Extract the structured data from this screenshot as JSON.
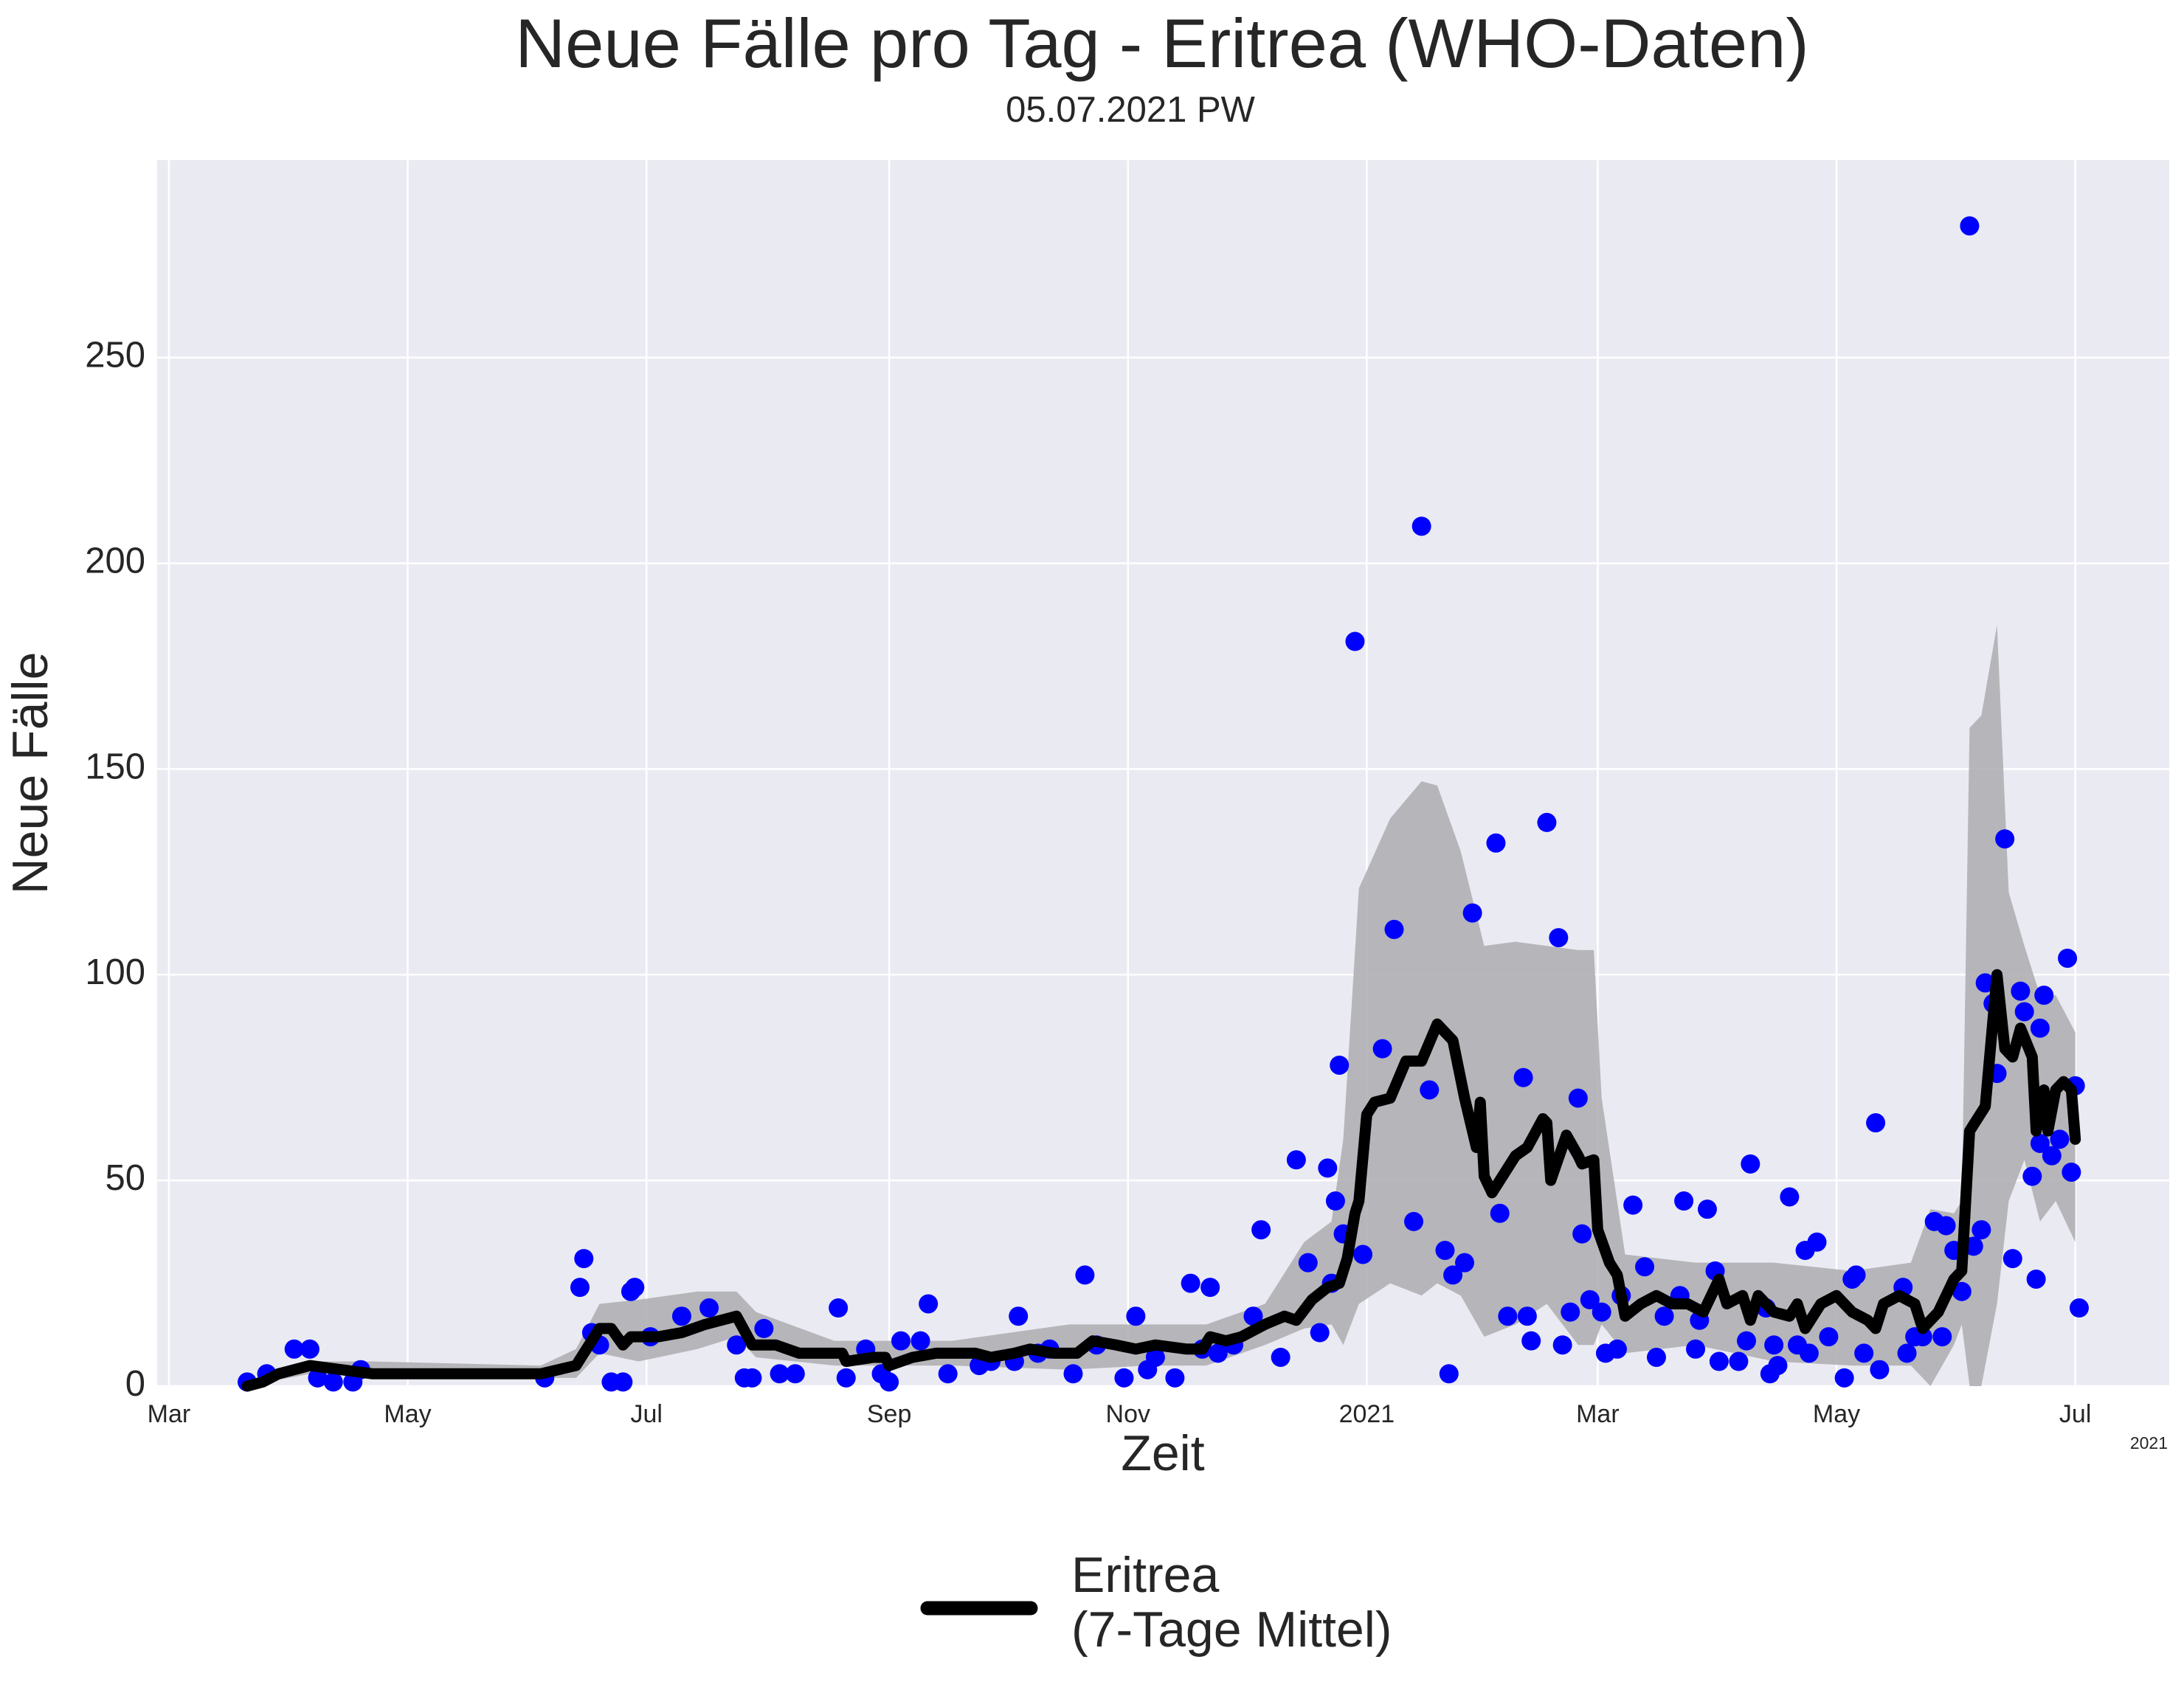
{
  "chart_data": {
    "type": "line",
    "title": "Neue Fälle pro Tag - Eritrea (WHO-Daten)",
    "subtitle": "05.07.2021 PW",
    "x_label": "Zeit",
    "y_label": "Neue Fälle",
    "x_offset_label": "2021",
    "background": "#eaeaf2",
    "grid": true,
    "legend": "lower center",
    "xlim": [
      -3,
      511
    ],
    "xticks": [
      {
        "value": 0,
        "label": "Mar"
      },
      {
        "value": 61,
        "label": "May"
      },
      {
        "value": 122,
        "label": "Jul"
      },
      {
        "value": 184,
        "label": "Sep"
      },
      {
        "value": 245,
        "label": "Nov"
      },
      {
        "value": 306,
        "label": "2021"
      },
      {
        "value": 365,
        "label": "Mar"
      },
      {
        "value": 426,
        "label": "May"
      },
      {
        "value": 487,
        "label": "Jul"
      }
    ],
    "ylim": [
      0,
      298
    ],
    "yticks": [
      0,
      50,
      100,
      150,
      200,
      250
    ],
    "band": {
      "color": "#ababb0",
      "x": [
        20,
        36,
        52,
        95,
        104,
        110,
        120,
        135,
        145,
        150,
        170,
        200,
        230,
        250,
        265,
        280,
        290,
        297,
        300,
        304,
        312,
        320,
        324,
        330,
        336,
        344,
        352,
        360,
        364,
        366,
        372,
        390,
        410,
        430,
        445,
        450,
        456,
        458,
        460,
        463,
        467,
        470,
        474,
        478,
        482,
        487
      ],
      "upper": [
        1,
        6,
        6,
        5,
        9,
        20,
        21,
        23,
        23,
        18,
        11,
        11,
        15,
        15,
        15,
        20,
        35,
        40,
        60,
        121,
        138,
        147,
        146,
        130,
        107,
        108,
        107,
        106,
        106,
        70,
        32,
        30,
        30,
        28,
        30,
        43,
        42,
        45,
        160,
        163,
        185,
        120,
        107,
        95,
        95,
        86
      ],
      "lower": [
        0,
        3,
        3,
        2,
        2,
        8,
        6,
        9,
        12,
        7,
        5,
        5,
        4,
        5,
        5,
        10,
        14,
        15,
        10,
        20,
        25,
        22,
        25,
        22,
        12,
        15,
        20,
        10,
        10,
        15,
        8,
        10,
        6,
        5,
        5,
        0,
        10,
        15,
        0,
        0,
        20,
        45,
        55,
        40,
        45,
        35
      ]
    },
    "scatter": {
      "color": "#0000ff",
      "x": [
        20,
        25,
        32,
        36,
        38,
        42,
        47,
        49,
        96,
        105,
        106,
        108,
        110,
        113,
        116,
        118,
        119,
        123,
        131,
        138,
        145,
        147,
        149,
        152,
        156,
        160,
        171,
        173,
        178,
        182,
        184,
        187,
        192,
        194,
        199,
        207,
        210,
        216,
        217,
        222,
        225,
        231,
        234,
        237,
        244,
        247,
        250,
        252,
        257,
        261,
        264,
        266,
        268,
        272,
        277,
        279,
        284,
        288,
        291,
        294,
        296,
        297,
        298,
        299,
        300,
        303,
        305,
        310,
        313,
        318,
        320,
        322,
        326,
        327,
        328,
        331,
        333,
        339,
        340,
        342,
        346,
        347,
        348,
        352,
        355,
        356,
        358,
        360,
        361,
        363,
        366,
        367,
        370,
        371,
        374,
        377,
        380,
        382,
        386,
        387,
        390,
        391,
        393,
        395,
        396,
        401,
        403,
        404,
        408,
        409,
        410,
        411,
        414,
        416,
        418,
        419,
        421,
        424,
        428,
        430,
        431,
        433,
        436,
        437,
        443,
        444,
        446,
        448,
        451,
        453,
        454,
        456,
        458,
        460,
        461,
        463,
        464,
        466,
        467,
        469,
        471,
        473,
        474,
        476,
        477,
        478,
        478,
        479,
        481,
        483,
        485,
        486,
        487,
        488
      ],
      "values": [
        1,
        3,
        9,
        9,
        2,
        1,
        1,
        4,
        2,
        24,
        31,
        13,
        10,
        1,
        1,
        23,
        24,
        12,
        17,
        19,
        10,
        2,
        2,
        14,
        3,
        3,
        19,
        2,
        9,
        3,
        1,
        11,
        11,
        20,
        3,
        5,
        6,
        6,
        17,
        8,
        9,
        3,
        27,
        10,
        2,
        17,
        4,
        7,
        2,
        25,
        9,
        24,
        8,
        10,
        17,
        38,
        7,
        55,
        30,
        13,
        53,
        25,
        45,
        78,
        37,
        181,
        32,
        82,
        111,
        40,
        209,
        72,
        33,
        3,
        27,
        30,
        115,
        132,
        42,
        17,
        75,
        17,
        11,
        137,
        109,
        10,
        18,
        70,
        37,
        21,
        18,
        8,
        9,
        22,
        44,
        29,
        7,
        17,
        22,
        45,
        9,
        16,
        43,
        28,
        6,
        6,
        11,
        54,
        19,
        3,
        10,
        5,
        46,
        10,
        33,
        8,
        35,
        12,
        2,
        26,
        27,
        8,
        64,
        4,
        24,
        8,
        12,
        12,
        40,
        12,
        39,
        33,
        23,
        282,
        34,
        38,
        98,
        93,
        76,
        133,
        31,
        96,
        91,
        51,
        26,
        59,
        87,
        95,
        56,
        60,
        104,
        52,
        73,
        19
      ]
    },
    "series": [
      {
        "name": "Eritrea\n(7-Tage Mittel)",
        "color": "#000000",
        "x": [
          20,
          24,
          28,
          36,
          44,
          52,
          95,
          104,
          110,
          113,
          116,
          118,
          125,
          131,
          137,
          145,
          149,
          155,
          161,
          172,
          173,
          180,
          183,
          184,
          190,
          196,
          206,
          210,
          216,
          220,
          226,
          232,
          236,
          242,
          247,
          252,
          260,
          264,
          266,
          270,
          274,
          280,
          285,
          288,
          292,
          296,
          299,
          301,
          303,
          304,
          306,
          308,
          312,
          316,
          320,
          324,
          328,
          331,
          334,
          335,
          336,
          338,
          344,
          347,
          351,
          352,
          353,
          357,
          360,
          361,
          364,
          365,
          368,
          370,
          372,
          376,
          380,
          384,
          388,
          392,
          396,
          398,
          402,
          404,
          406,
          410,
          414,
          416,
          418,
          422,
          426,
          430,
          434,
          436,
          438,
          442,
          446,
          448,
          452,
          456,
          458,
          460,
          464,
          467,
          469,
          471,
          473,
          476,
          477,
          479,
          480,
          482,
          484,
          486,
          487
        ],
        "values": [
          0,
          1,
          3,
          5,
          4,
          3,
          3,
          5,
          14,
          14,
          10,
          12,
          12,
          13,
          15,
          17,
          10,
          10,
          8,
          8,
          6,
          7,
          7,
          5,
          7,
          8,
          8,
          7,
          8,
          9,
          8,
          8,
          11,
          10,
          9,
          10,
          9,
          9,
          12,
          11,
          12,
          15,
          17,
          16,
          21,
          24,
          25,
          31,
          42,
          45,
          66,
          69,
          70,
          79,
          79,
          88,
          84,
          70,
          58,
          69,
          51,
          47,
          56,
          58,
          65,
          64,
          50,
          61,
          56,
          54,
          55,
          38,
          30,
          27,
          17,
          20,
          22,
          20,
          20,
          18,
          26,
          20,
          22,
          16,
          22,
          18,
          17,
          20,
          14,
          20,
          22,
          18,
          16,
          14,
          20,
          22,
          20,
          14,
          18,
          26,
          28,
          62,
          68,
          100,
          82,
          80,
          87,
          80,
          62,
          72,
          62,
          72,
          74,
          72,
          60
        ]
      }
    ]
  }
}
